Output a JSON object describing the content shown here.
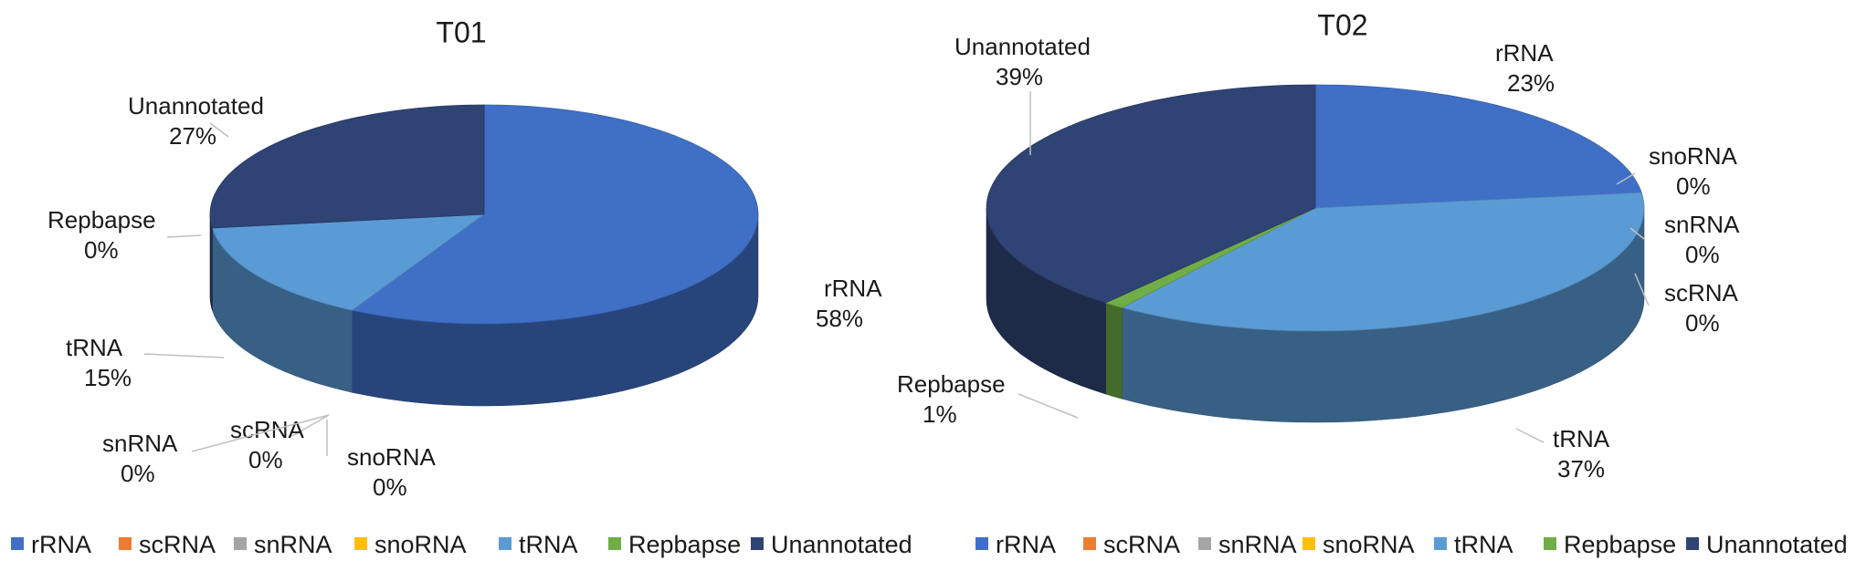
{
  "colors": {
    "rRNA": "#3f70c6",
    "scRNA": "#ed7d31",
    "snRNA": "#a5a5a5",
    "snoRNA": "#ffc000",
    "tRNA": "#5b9bd5",
    "Repbapse": "#70ad47",
    "Unannotated": "#2f4374"
  },
  "chart_data": [
    {
      "type": "pie",
      "title": "T01",
      "categories": [
        "rRNA",
        "scRNA",
        "snRNA",
        "snoRNA",
        "tRNA",
        "Repbapse",
        "Unannotated"
      ],
      "values": [
        58,
        0,
        0,
        0,
        15,
        0,
        27
      ],
      "percent_labels": [
        "58%",
        "0%",
        "0%",
        "0%",
        "15%",
        "0%",
        "27%"
      ],
      "legend_position": "bottom"
    },
    {
      "type": "pie",
      "title": "T02",
      "categories": [
        "rRNA",
        "snoRNA",
        "snRNA",
        "scRNA",
        "tRNA",
        "Repbapse",
        "Unannotated"
      ],
      "values": [
        23,
        0,
        0,
        0,
        37,
        1,
        39
      ],
      "percent_labels": [
        "23%",
        "0%",
        "0%",
        "0%",
        "37%",
        "1%",
        "39%"
      ],
      "legend_position": "bottom"
    }
  ],
  "legends": [
    [
      "rRNA",
      "scRNA",
      "snRNA",
      "snoRNA",
      "tRNA",
      "Repbapse",
      "Unannotated"
    ],
    [
      "rRNA",
      "scRNA",
      "snRNA",
      "snoRNA",
      "tRNA",
      "Repbapse",
      "Unannotated"
    ]
  ]
}
